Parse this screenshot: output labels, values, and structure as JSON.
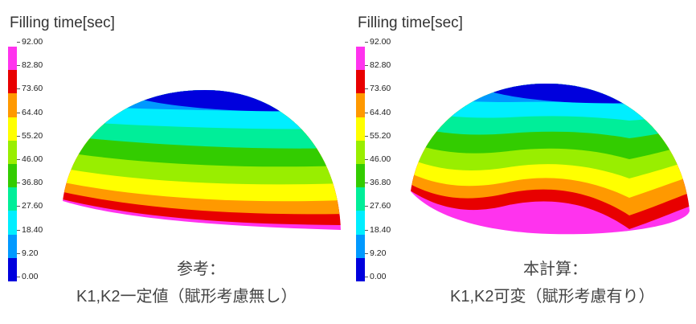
{
  "legend": {
    "title": "Filling time[sec]",
    "ticks": [
      "92.00",
      "82.80",
      "73.60",
      "64.40",
      "55.20",
      "46.00",
      "36.80",
      "27.60",
      "18.40",
      "9.20",
      "0.00"
    ],
    "colors": [
      "#ff33ee",
      "#e80000",
      "#ff9900",
      "#ffff00",
      "#99ee00",
      "#33cc00",
      "#00ee99",
      "#00eeff",
      "#0099ff",
      "#0000dd"
    ]
  },
  "panels": [
    {
      "caption_line1": "参考：",
      "caption_line2": "K1,K2一定値（賦形考慮無し）"
    },
    {
      "caption_line1": "本計算：",
      "caption_line2": "K1,K2可変（賦形考慮有り）"
    }
  ]
}
